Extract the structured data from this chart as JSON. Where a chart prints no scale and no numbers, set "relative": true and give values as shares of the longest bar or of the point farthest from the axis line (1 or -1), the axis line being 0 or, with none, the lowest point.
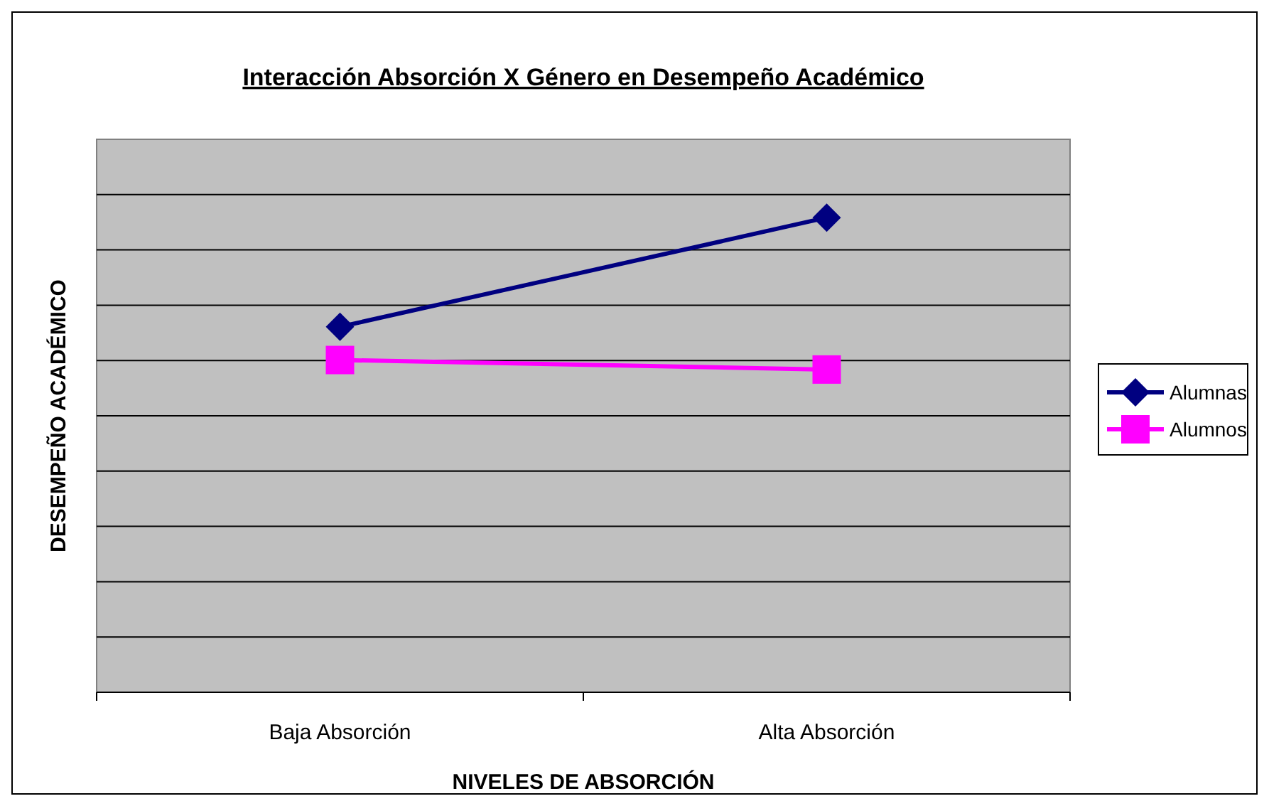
{
  "chart_data": {
    "type": "line",
    "title": "Interacción Absorción X Género en Desempeño Académico",
    "xlabel": "NIVELES DE ABSORCIÓN",
    "ylabel": "DESEMPEÑO ACADÉMICO",
    "categories": [
      "Baja Absorción",
      "Alta Absorción"
    ],
    "relative": true,
    "grid": "y",
    "legend": "right",
    "series": [
      {
        "name": "Alumnas",
        "color": "#000080",
        "values": [
          0.77,
          1
        ],
        "marker": "diamond"
      },
      {
        "name": "Alumnos",
        "color": "#ff00ff",
        "values": [
          0.7,
          0.68
        ],
        "marker": "square"
      }
    ]
  }
}
